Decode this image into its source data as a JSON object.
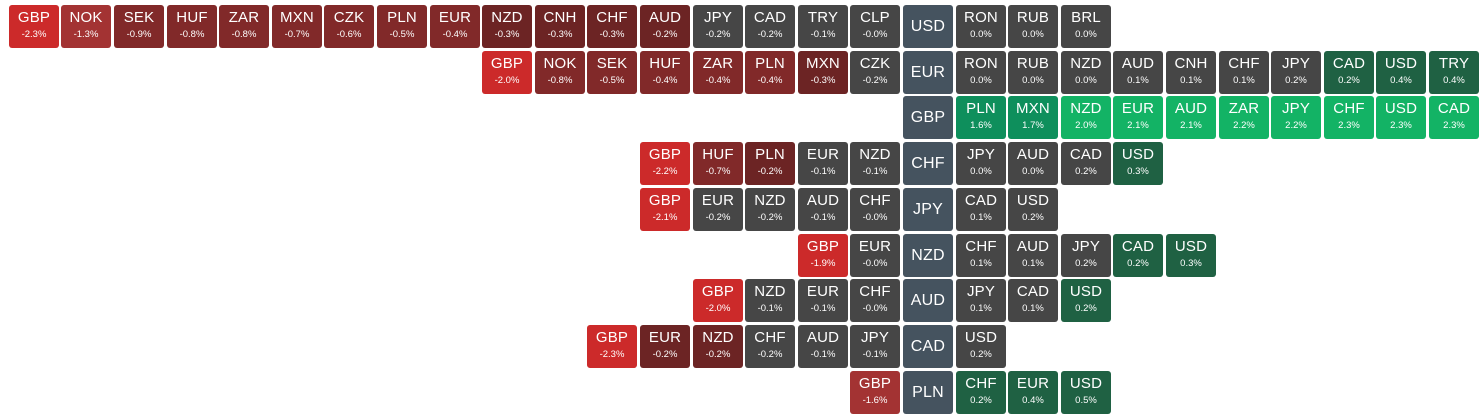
{
  "colors": {
    "base": "#45535f",
    "neutral": "#464646",
    "neg_strong": "#cc2a2a",
    "neg_medium": "#a33333",
    "neg_light": "#812929",
    "neg_dark": "#6c2424",
    "pos_light": "#1f6143",
    "pos_medium": "#0e8f5c",
    "pos_strong": "#13b365"
  },
  "rows": [
    {
      "base": "USD",
      "left": [
        {
          "symbol": "GBP",
          "change": "-2.3%",
          "color": "#cc2a2a"
        },
        {
          "symbol": "NOK",
          "change": "-1.3%",
          "color": "#a33333"
        },
        {
          "symbol": "SEK",
          "change": "-0.9%",
          "color": "#812929"
        },
        {
          "symbol": "HUF",
          "change": "-0.8%",
          "color": "#812929"
        },
        {
          "symbol": "ZAR",
          "change": "-0.8%",
          "color": "#812929"
        },
        {
          "symbol": "MXN",
          "change": "-0.7%",
          "color": "#812929"
        },
        {
          "symbol": "CZK",
          "change": "-0.6%",
          "color": "#812929"
        },
        {
          "symbol": "PLN",
          "change": "-0.5%",
          "color": "#812929"
        },
        {
          "symbol": "EUR",
          "change": "-0.4%",
          "color": "#812929"
        },
        {
          "symbol": "NZD",
          "change": "-0.3%",
          "color": "#6c2424"
        },
        {
          "symbol": "CNH",
          "change": "-0.3%",
          "color": "#6c2424"
        },
        {
          "symbol": "CHF",
          "change": "-0.3%",
          "color": "#6c2424"
        },
        {
          "symbol": "AUD",
          "change": "-0.2%",
          "color": "#6c2424"
        },
        {
          "symbol": "JPY",
          "change": "-0.2%",
          "color": "#464646"
        },
        {
          "symbol": "CAD",
          "change": "-0.2%",
          "color": "#464646"
        },
        {
          "symbol": "TRY",
          "change": "-0.1%",
          "color": "#464646"
        },
        {
          "symbol": "CLP",
          "change": "-0.0%",
          "color": "#464646"
        }
      ],
      "right": [
        {
          "symbol": "RON",
          "change": "0.0%",
          "color": "#464646"
        },
        {
          "symbol": "RUB",
          "change": "0.0%",
          "color": "#464646"
        },
        {
          "symbol": "BRL",
          "change": "0.0%",
          "color": "#464646"
        }
      ]
    },
    {
      "base": "EUR",
      "left": [
        {
          "symbol": "GBP",
          "change": "-2.0%",
          "color": "#cc2a2a"
        },
        {
          "symbol": "NOK",
          "change": "-0.8%",
          "color": "#812929"
        },
        {
          "symbol": "SEK",
          "change": "-0.5%",
          "color": "#812929"
        },
        {
          "symbol": "HUF",
          "change": "-0.4%",
          "color": "#812929"
        },
        {
          "symbol": "ZAR",
          "change": "-0.4%",
          "color": "#812929"
        },
        {
          "symbol": "PLN",
          "change": "-0.4%",
          "color": "#812929"
        },
        {
          "symbol": "MXN",
          "change": "-0.3%",
          "color": "#6c2424"
        },
        {
          "symbol": "CZK",
          "change": "-0.2%",
          "color": "#464646"
        }
      ],
      "right": [
        {
          "symbol": "RON",
          "change": "0.0%",
          "color": "#464646"
        },
        {
          "symbol": "RUB",
          "change": "0.0%",
          "color": "#464646"
        },
        {
          "symbol": "NZD",
          "change": "0.0%",
          "color": "#464646"
        },
        {
          "symbol": "AUD",
          "change": "0.1%",
          "color": "#464646"
        },
        {
          "symbol": "CNH",
          "change": "0.1%",
          "color": "#464646"
        },
        {
          "symbol": "CHF",
          "change": "0.1%",
          "color": "#464646"
        },
        {
          "symbol": "JPY",
          "change": "0.2%",
          "color": "#464646"
        },
        {
          "symbol": "CAD",
          "change": "0.2%",
          "color": "#1f6143"
        },
        {
          "symbol": "USD",
          "change": "0.4%",
          "color": "#1f6143"
        },
        {
          "symbol": "TRY",
          "change": "0.4%",
          "color": "#1f6143"
        }
      ]
    },
    {
      "base": "GBP",
      "left": [],
      "right": [
        {
          "symbol": "PLN",
          "change": "1.6%",
          "color": "#0e8f5c"
        },
        {
          "symbol": "MXN",
          "change": "1.7%",
          "color": "#0e8f5c"
        },
        {
          "symbol": "NZD",
          "change": "2.0%",
          "color": "#13b365"
        },
        {
          "symbol": "EUR",
          "change": "2.1%",
          "color": "#13b365"
        },
        {
          "symbol": "AUD",
          "change": "2.1%",
          "color": "#13b365"
        },
        {
          "symbol": "ZAR",
          "change": "2.2%",
          "color": "#13b365"
        },
        {
          "symbol": "JPY",
          "change": "2.2%",
          "color": "#13b365"
        },
        {
          "symbol": "CHF",
          "change": "2.3%",
          "color": "#13b365"
        },
        {
          "symbol": "USD",
          "change": "2.3%",
          "color": "#13b365"
        },
        {
          "symbol": "CAD",
          "change": "2.3%",
          "color": "#13b365"
        }
      ]
    },
    {
      "base": "CHF",
      "left": [
        {
          "symbol": "GBP",
          "change": "-2.2%",
          "color": "#cc2a2a"
        },
        {
          "symbol": "HUF",
          "change": "-0.7%",
          "color": "#812929"
        },
        {
          "symbol": "PLN",
          "change": "-0.2%",
          "color": "#6c2424"
        },
        {
          "symbol": "EUR",
          "change": "-0.1%",
          "color": "#464646"
        },
        {
          "symbol": "NZD",
          "change": "-0.1%",
          "color": "#464646"
        }
      ],
      "right": [
        {
          "symbol": "JPY",
          "change": "0.0%",
          "color": "#464646"
        },
        {
          "symbol": "AUD",
          "change": "0.0%",
          "color": "#464646"
        },
        {
          "symbol": "CAD",
          "change": "0.2%",
          "color": "#464646"
        },
        {
          "symbol": "USD",
          "change": "0.3%",
          "color": "#1f6143"
        }
      ]
    },
    {
      "base": "JPY",
      "left": [
        {
          "symbol": "GBP",
          "change": "-2.1%",
          "color": "#cc2a2a"
        },
        {
          "symbol": "EUR",
          "change": "-0.2%",
          "color": "#464646"
        },
        {
          "symbol": "NZD",
          "change": "-0.2%",
          "color": "#464646"
        },
        {
          "symbol": "AUD",
          "change": "-0.1%",
          "color": "#464646"
        },
        {
          "symbol": "CHF",
          "change": "-0.0%",
          "color": "#464646"
        }
      ],
      "right": [
        {
          "symbol": "CAD",
          "change": "0.1%",
          "color": "#464646"
        },
        {
          "symbol": "USD",
          "change": "0.2%",
          "color": "#464646"
        }
      ]
    },
    {
      "base": "NZD",
      "left": [
        {
          "symbol": "GBP",
          "change": "-1.9%",
          "color": "#cc2a2a"
        },
        {
          "symbol": "EUR",
          "change": "-0.0%",
          "color": "#464646"
        }
      ],
      "right": [
        {
          "symbol": "CHF",
          "change": "0.1%",
          "color": "#464646"
        },
        {
          "symbol": "AUD",
          "change": "0.1%",
          "color": "#464646"
        },
        {
          "symbol": "JPY",
          "change": "0.2%",
          "color": "#464646"
        },
        {
          "symbol": "CAD",
          "change": "0.2%",
          "color": "#1f6143"
        },
        {
          "symbol": "USD",
          "change": "0.3%",
          "color": "#1f6143"
        }
      ]
    },
    {
      "base": "AUD",
      "left": [
        {
          "symbol": "GBP",
          "change": "-2.0%",
          "color": "#cc2a2a"
        },
        {
          "symbol": "NZD",
          "change": "-0.1%",
          "color": "#464646"
        },
        {
          "symbol": "EUR",
          "change": "-0.1%",
          "color": "#464646"
        },
        {
          "symbol": "CHF",
          "change": "-0.0%",
          "color": "#464646"
        }
      ],
      "right": [
        {
          "symbol": "JPY",
          "change": "0.1%",
          "color": "#464646"
        },
        {
          "symbol": "CAD",
          "change": "0.1%",
          "color": "#464646"
        },
        {
          "symbol": "USD",
          "change": "0.2%",
          "color": "#1f6143"
        }
      ]
    },
    {
      "base": "CAD",
      "left": [
        {
          "symbol": "GBP",
          "change": "-2.3%",
          "color": "#cc2a2a"
        },
        {
          "symbol": "EUR",
          "change": "-0.2%",
          "color": "#6c2424"
        },
        {
          "symbol": "NZD",
          "change": "-0.2%",
          "color": "#6c2424"
        },
        {
          "symbol": "CHF",
          "change": "-0.2%",
          "color": "#464646"
        },
        {
          "symbol": "AUD",
          "change": "-0.1%",
          "color": "#464646"
        },
        {
          "symbol": "JPY",
          "change": "-0.1%",
          "color": "#464646"
        }
      ],
      "right": [
        {
          "symbol": "USD",
          "change": "0.2%",
          "color": "#464646"
        }
      ]
    },
    {
      "base": "PLN",
      "left": [
        {
          "symbol": "GBP",
          "change": "-1.6%",
          "color": "#a33333"
        }
      ],
      "right": [
        {
          "symbol": "CHF",
          "change": "0.2%",
          "color": "#1f6143"
        },
        {
          "symbol": "EUR",
          "change": "0.4%",
          "color": "#1f6143"
        },
        {
          "symbol": "USD",
          "change": "0.5%",
          "color": "#1f6143"
        }
      ]
    }
  ]
}
